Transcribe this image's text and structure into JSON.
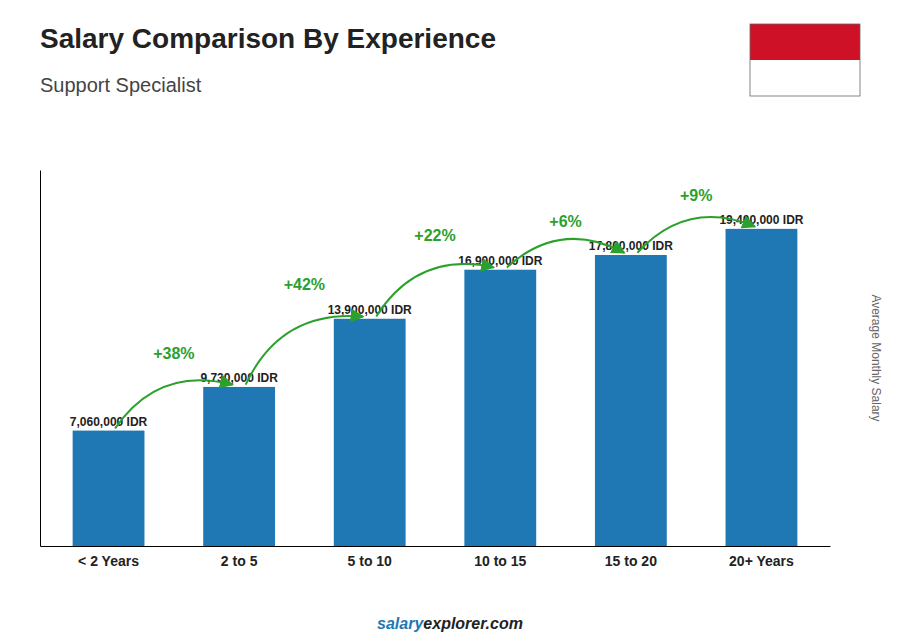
{
  "chart_data": {
    "type": "bar",
    "title": "Salary Comparison By Experience",
    "subtitle": "Support Specialist",
    "ylabel": "Average Monthly Salary",
    "categories": [
      "< 2 Years",
      "2 to 5",
      "5 to 10",
      "10 to 15",
      "15 to 20",
      "20+ Years"
    ],
    "values": [
      7060000,
      9730000,
      13900000,
      16900000,
      17800000,
      19400000
    ],
    "value_labels": [
      "7,060,000 IDR",
      "9,730,000 IDR",
      "13,900,000 IDR",
      "16,900,000 IDR",
      "17,800,000 IDR",
      "19,400,000 IDR"
    ],
    "data_labels": true,
    "annotations": [
      "+38%",
      "+42%",
      "+22%",
      "+6%",
      "+9%"
    ],
    "footer": [
      "salary",
      "explorer.com"
    ],
    "ylim": [
      0,
      23000000
    ],
    "yticks": [],
    "grid": false,
    "tick_labels": "x"
  }
}
